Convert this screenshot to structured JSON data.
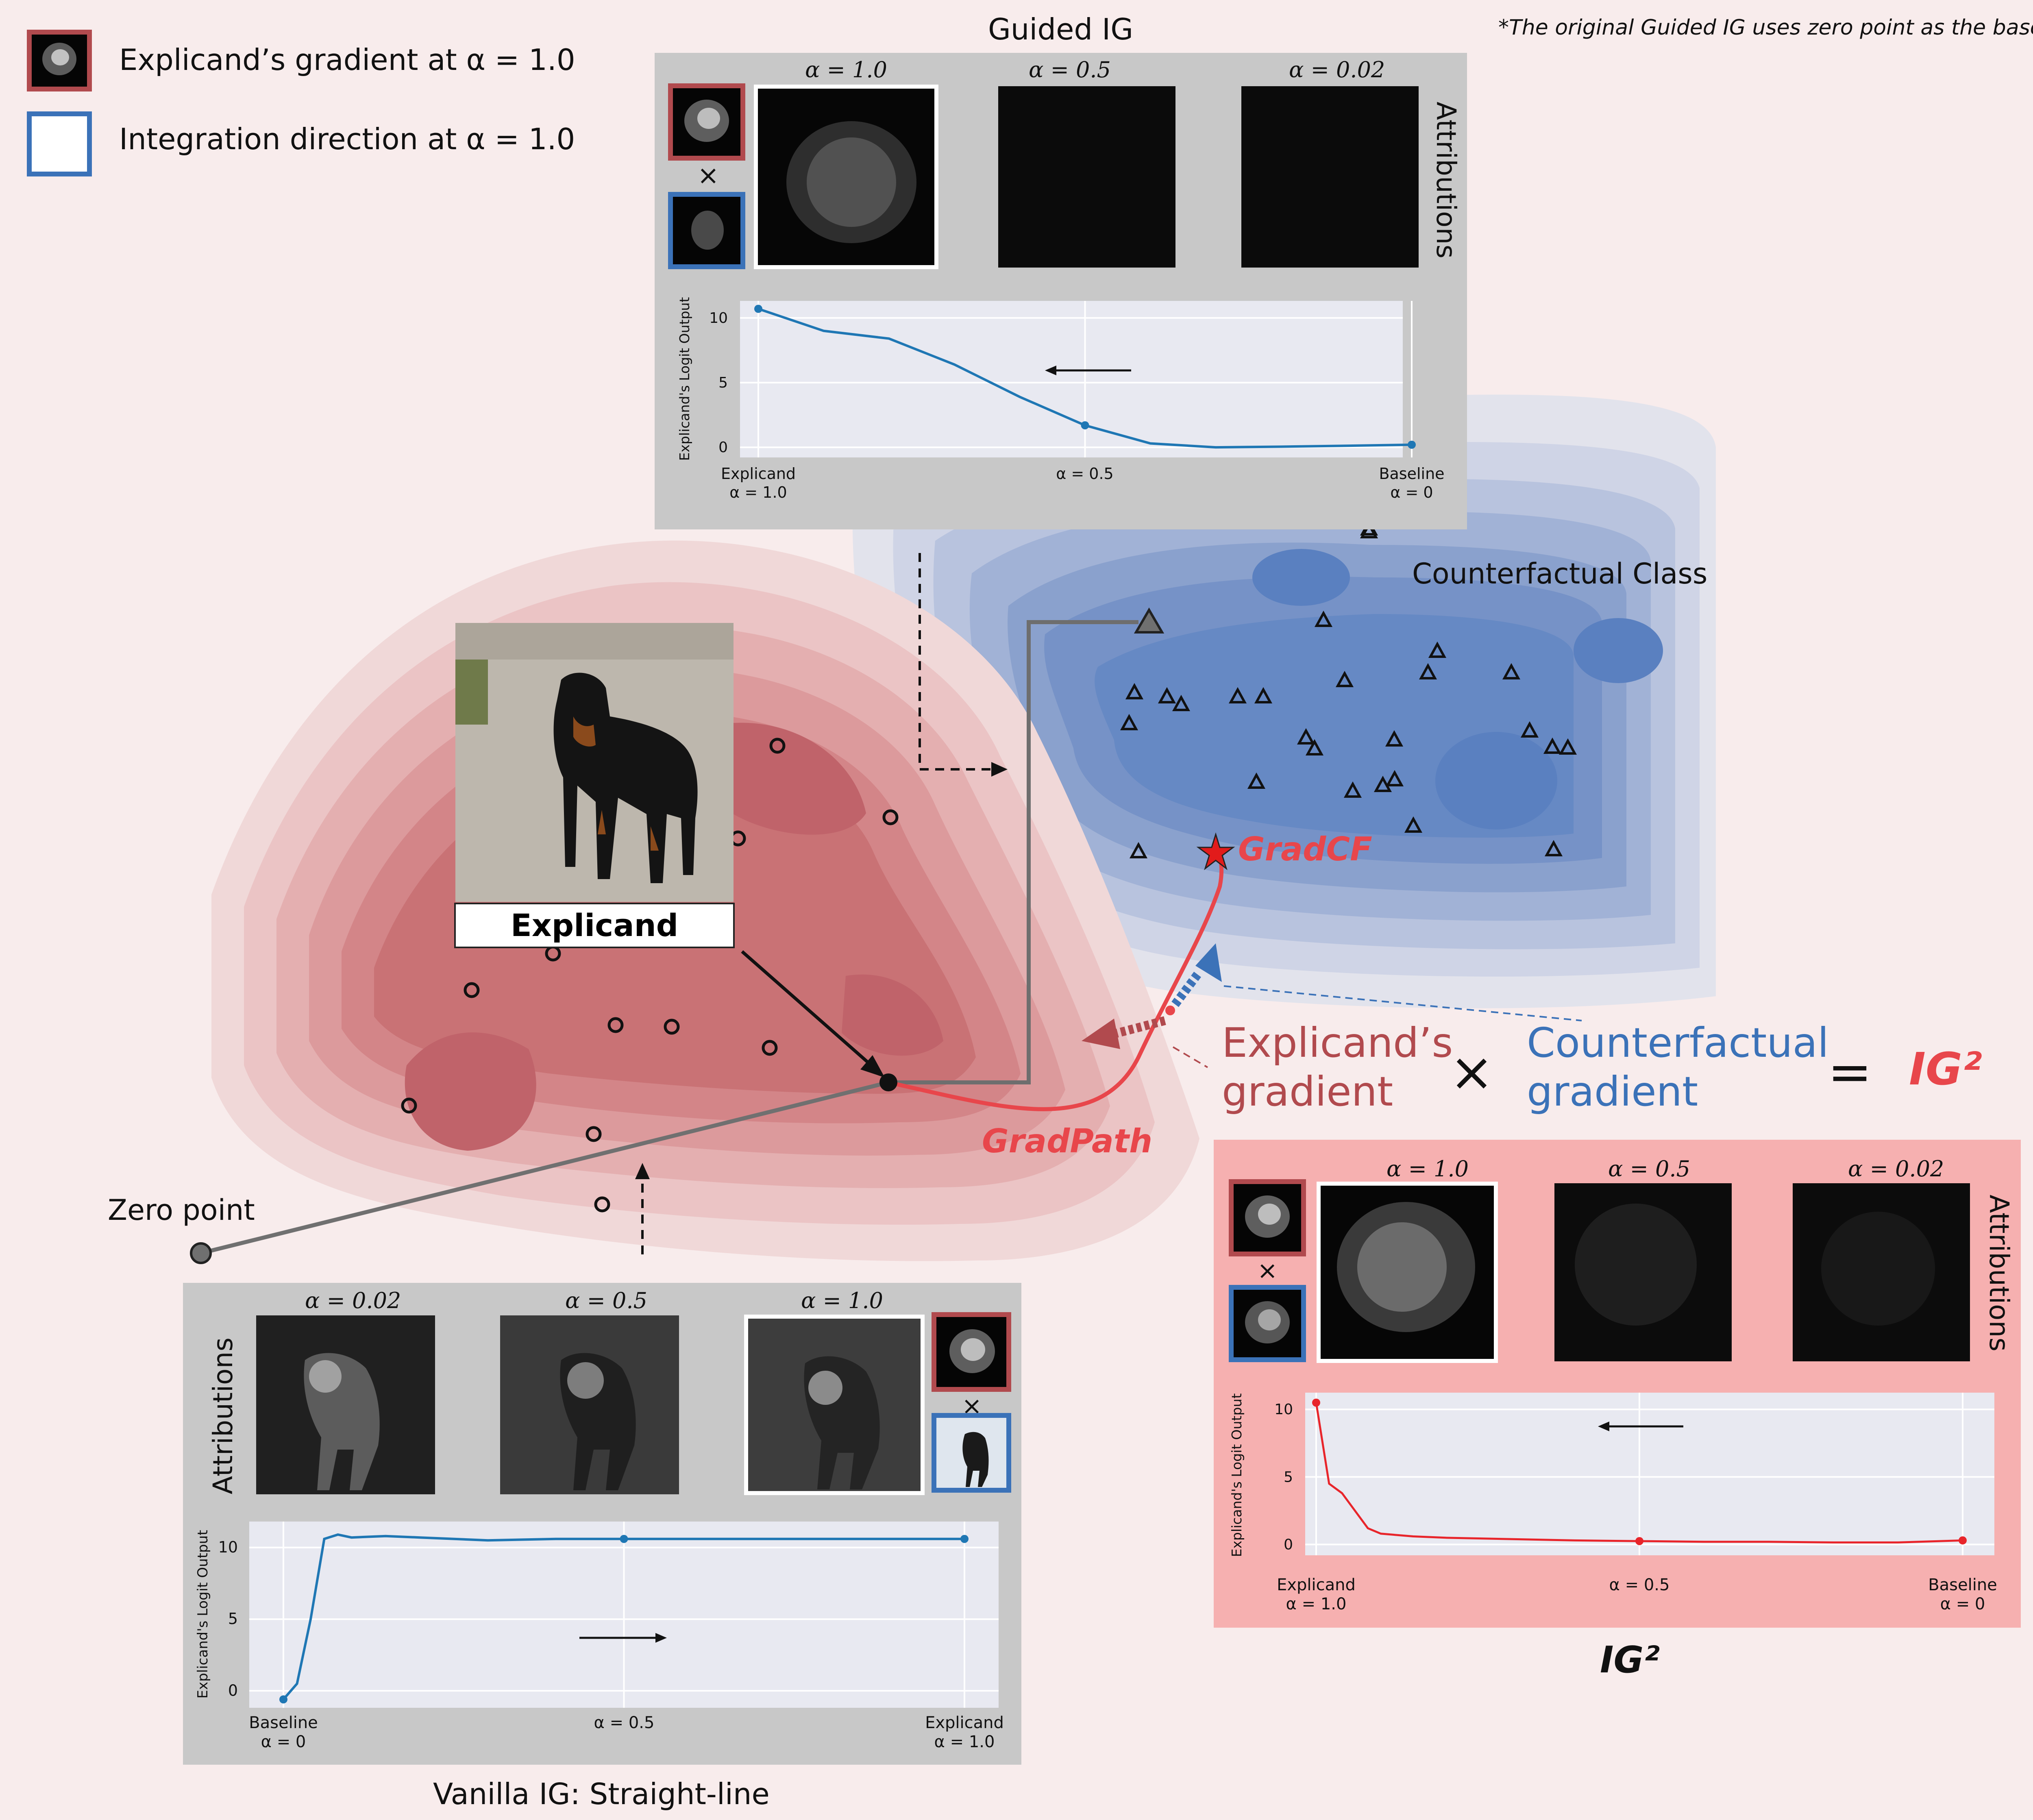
{
  "colors": {
    "background": "#f8ecec",
    "explicand_red": "#b14a4e",
    "counterfactual_blue": "#3b72b8",
    "ig2_red": "#e8464b",
    "guided_curve": "#1f77b4",
    "panel_grey": "#c8c8c8",
    "panel_pink": "#f6b0b0"
  },
  "legend": {
    "item1": "Explicand’s gradient at α = 1.0",
    "item2": "Integration direction at α = 1.0"
  },
  "footnote": "*The original Guided IG uses zero point as the baseline.",
  "guided_ig": {
    "title": "Guided IG",
    "alpha_labels": [
      "α = 1.0",
      "α = 0.5",
      "α = 0.02"
    ],
    "times_symbol": "×",
    "side_label": "Attributions",
    "ylabel": "Explicand's Logit Output",
    "yticks": [
      "10",
      "5",
      "0"
    ],
    "xticks": [
      {
        "line1": "Explicand",
        "line2": "α = 1.0"
      },
      {
        "line1": "α = 0.5",
        "line2": ""
      },
      {
        "line1": "Baseline",
        "line2": "α = 0"
      }
    ]
  },
  "vanilla_ig": {
    "title": "Vanilla IG: Straight-line",
    "alpha_labels": [
      "α = 0.02",
      "α = 0.5",
      "α = 1.0"
    ],
    "times_symbol": "×",
    "side_label": "Attributions",
    "ylabel": "Explicand's Logit Output",
    "yticks": [
      "10",
      "5",
      "0"
    ],
    "xticks": [
      {
        "line1": "Baseline",
        "line2": "α = 0"
      },
      {
        "line1": "α = 0.5",
        "line2": ""
      },
      {
        "line1": "Explicand",
        "line2": "α = 1.0"
      }
    ]
  },
  "ig2": {
    "title": "IG²",
    "alpha_labels": [
      "α = 1.0",
      "α = 0.5",
      "α = 0.02"
    ],
    "times_symbol": "×",
    "side_label": "Attributions",
    "ylabel": "Explicand's Logit Output",
    "yticks": [
      "10",
      "5",
      "0"
    ],
    "xticks": [
      {
        "line1": "Explicand",
        "line2": "α = 1.0"
      },
      {
        "line1": "α = 0.5",
        "line2": ""
      },
      {
        "line1": "Baseline",
        "line2": "α = 0"
      }
    ]
  },
  "map_labels": {
    "counterfactual_class": "Counterfactual Class",
    "explicand": "Explicand",
    "zero_point": "Zero point",
    "gradcf": "GradCF",
    "gradpath": "GradPath"
  },
  "equation": {
    "term1_line1": "Explicand’s",
    "term1_line2": "gradient",
    "times": "×",
    "term2_line1": "Counterfactual",
    "term2_line2": "gradient",
    "equals": "=",
    "result": "IG²"
  },
  "chart_data": [
    {
      "type": "line",
      "title": "Guided IG",
      "ylabel": "Explicand's Logit Output",
      "ylim": [
        -0.5,
        11
      ],
      "x": [
        1.0,
        0.9,
        0.8,
        0.7,
        0.6,
        0.5,
        0.4,
        0.3,
        0.2,
        0.1,
        0.0
      ],
      "series": [
        {
          "values": [
            10.7,
            9.0,
            8.4,
            6.4,
            3.9,
            1.7,
            0.3,
            0.0,
            0.05,
            0.12,
            0.2
          ]
        }
      ],
      "markers": [
        {
          "x": 1.0,
          "y": 10.7
        },
        {
          "x": 0.5,
          "y": 1.7
        },
        {
          "x": 0.0,
          "y": 0.2
        }
      ],
      "grid": true
    },
    {
      "type": "line",
      "title": "Vanilla IG: Straight-line",
      "ylabel": "Explicand's Logit Output",
      "ylim": [
        -0.9,
        11.5
      ],
      "x": [
        0.0,
        0.02,
        0.04,
        0.06,
        0.08,
        0.1,
        0.15,
        0.2,
        0.3,
        0.4,
        0.5,
        0.6,
        0.7,
        0.8,
        0.9,
        1.0
      ],
      "series": [
        {
          "values": [
            -0.6,
            0.5,
            5.0,
            10.6,
            10.9,
            10.7,
            10.8,
            10.7,
            10.5,
            10.6,
            10.6,
            10.6,
            10.6,
            10.6,
            10.6,
            10.6
          ]
        }
      ],
      "markers": [
        {
          "x": 0.0,
          "y": -0.6
        },
        {
          "x": 0.5,
          "y": 10.6
        },
        {
          "x": 1.0,
          "y": 10.6
        }
      ],
      "grid": true
    },
    {
      "type": "line",
      "title": "IG²",
      "ylabel": "Explicand's Logit Output",
      "ylim": [
        -0.5,
        11
      ],
      "x": [
        1.0,
        0.98,
        0.96,
        0.94,
        0.92,
        0.9,
        0.85,
        0.8,
        0.7,
        0.6,
        0.5,
        0.4,
        0.3,
        0.2,
        0.1,
        0.0
      ],
      "series": [
        {
          "values": [
            10.5,
            4.5,
            3.8,
            2.5,
            1.2,
            0.8,
            0.6,
            0.5,
            0.4,
            0.3,
            0.25,
            0.2,
            0.2,
            0.15,
            0.15,
            0.3
          ]
        }
      ],
      "markers": [
        {
          "x": 1.0,
          "y": 10.5
        },
        {
          "x": 0.5,
          "y": 0.25
        },
        {
          "x": 0.0,
          "y": 0.3
        }
      ],
      "grid": true
    }
  ]
}
